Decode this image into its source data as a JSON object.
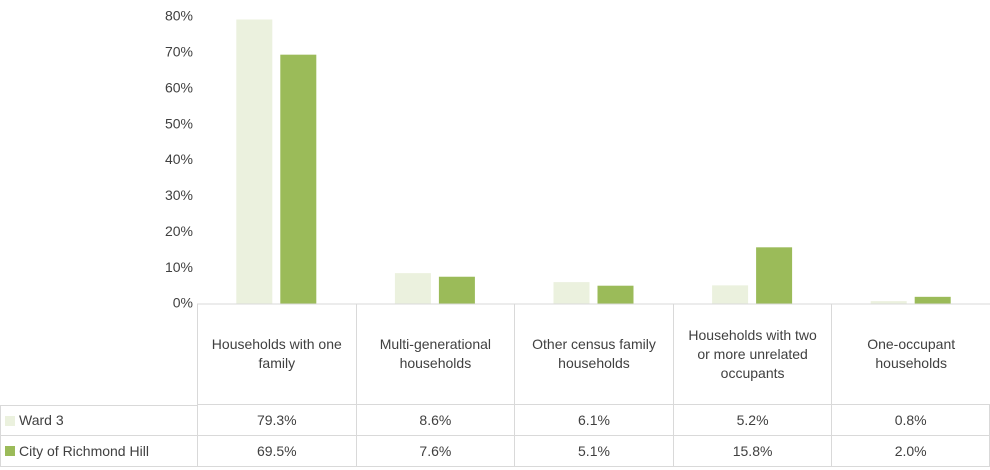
{
  "chart_data": {
    "type": "bar",
    "categories": [
      "Households with one family",
      "Multi-generational households",
      "Other census family households",
      "Households with two or more unrelated occupants",
      "One-occupant households"
    ],
    "series": [
      {
        "name": "Ward 3",
        "color": "#ebf1de",
        "values": [
          79.3,
          8.6,
          6.1,
          5.2,
          0.8
        ],
        "value_labels": [
          "79.3%",
          "8.6%",
          "6.1%",
          "5.2%",
          "0.8%"
        ]
      },
      {
        "name": "City of Richmond Hill",
        "color": "#9bbb59",
        "values": [
          69.5,
          7.6,
          5.1,
          15.8,
          2.0
        ],
        "value_labels": [
          "69.5%",
          "7.6%",
          "5.1%",
          "15.8%",
          "2.0%"
        ]
      }
    ],
    "ylim": [
      0,
      80
    ],
    "yticks": [
      {
        "value": 0,
        "label": "0%"
      },
      {
        "value": 10,
        "label": "10%"
      },
      {
        "value": 20,
        "label": "20%"
      },
      {
        "value": 30,
        "label": "30%"
      },
      {
        "value": 40,
        "label": "40%"
      },
      {
        "value": 50,
        "label": "50%"
      },
      {
        "value": 60,
        "label": "60%"
      },
      {
        "value": 70,
        "label": "70%"
      },
      {
        "value": 80,
        "label": "80%"
      }
    ],
    "grid": false
  }
}
